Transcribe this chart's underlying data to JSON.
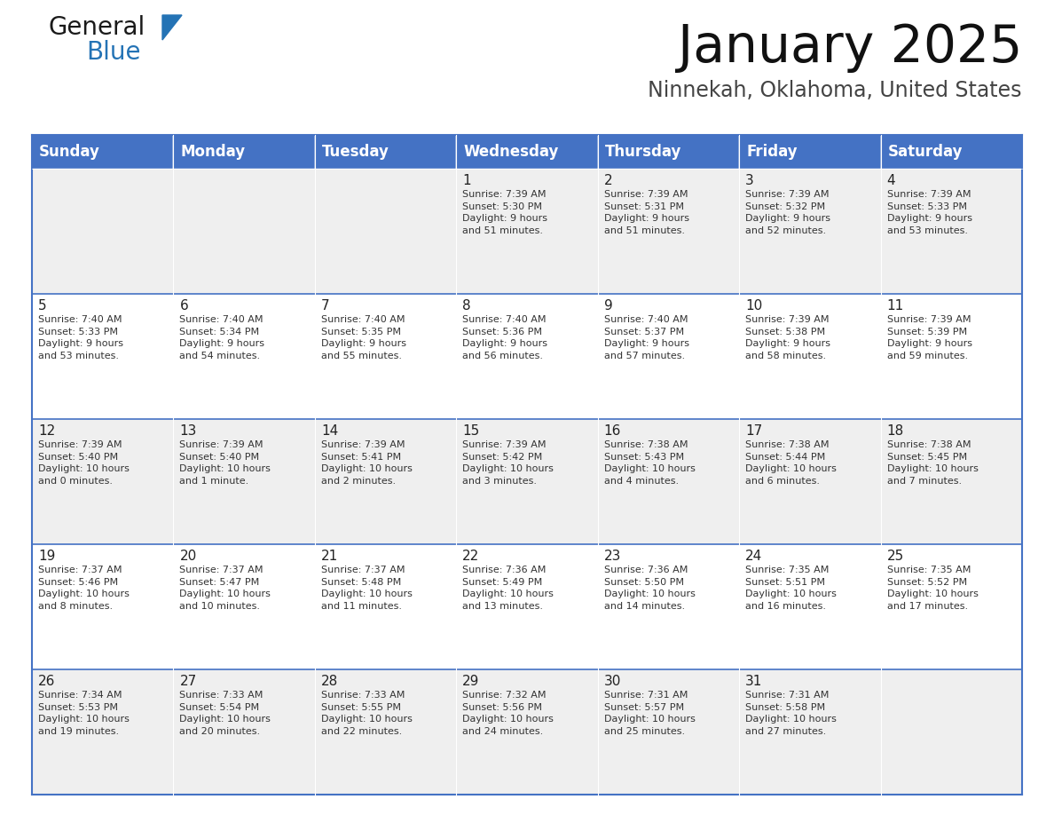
{
  "title": "January 2025",
  "subtitle": "Ninnekah, Oklahoma, United States",
  "header_bg": "#4472C4",
  "header_text_color": "#FFFFFF",
  "cell_bg_odd": "#EFEFEF",
  "cell_bg_even": "#FFFFFF",
  "border_color": "#4472C4",
  "row_divider_color": "#4472C4",
  "text_color": "#333333",
  "day_num_color": "#222222",
  "days_of_week": [
    "Sunday",
    "Monday",
    "Tuesday",
    "Wednesday",
    "Thursday",
    "Friday",
    "Saturday"
  ],
  "weeks": [
    [
      {
        "day": "",
        "info": ""
      },
      {
        "day": "",
        "info": ""
      },
      {
        "day": "",
        "info": ""
      },
      {
        "day": "1",
        "info": "Sunrise: 7:39 AM\nSunset: 5:30 PM\nDaylight: 9 hours\nand 51 minutes."
      },
      {
        "day": "2",
        "info": "Sunrise: 7:39 AM\nSunset: 5:31 PM\nDaylight: 9 hours\nand 51 minutes."
      },
      {
        "day": "3",
        "info": "Sunrise: 7:39 AM\nSunset: 5:32 PM\nDaylight: 9 hours\nand 52 minutes."
      },
      {
        "day": "4",
        "info": "Sunrise: 7:39 AM\nSunset: 5:33 PM\nDaylight: 9 hours\nand 53 minutes."
      }
    ],
    [
      {
        "day": "5",
        "info": "Sunrise: 7:40 AM\nSunset: 5:33 PM\nDaylight: 9 hours\nand 53 minutes."
      },
      {
        "day": "6",
        "info": "Sunrise: 7:40 AM\nSunset: 5:34 PM\nDaylight: 9 hours\nand 54 minutes."
      },
      {
        "day": "7",
        "info": "Sunrise: 7:40 AM\nSunset: 5:35 PM\nDaylight: 9 hours\nand 55 minutes."
      },
      {
        "day": "8",
        "info": "Sunrise: 7:40 AM\nSunset: 5:36 PM\nDaylight: 9 hours\nand 56 minutes."
      },
      {
        "day": "9",
        "info": "Sunrise: 7:40 AM\nSunset: 5:37 PM\nDaylight: 9 hours\nand 57 minutes."
      },
      {
        "day": "10",
        "info": "Sunrise: 7:39 AM\nSunset: 5:38 PM\nDaylight: 9 hours\nand 58 minutes."
      },
      {
        "day": "11",
        "info": "Sunrise: 7:39 AM\nSunset: 5:39 PM\nDaylight: 9 hours\nand 59 minutes."
      }
    ],
    [
      {
        "day": "12",
        "info": "Sunrise: 7:39 AM\nSunset: 5:40 PM\nDaylight: 10 hours\nand 0 minutes."
      },
      {
        "day": "13",
        "info": "Sunrise: 7:39 AM\nSunset: 5:40 PM\nDaylight: 10 hours\nand 1 minute."
      },
      {
        "day": "14",
        "info": "Sunrise: 7:39 AM\nSunset: 5:41 PM\nDaylight: 10 hours\nand 2 minutes."
      },
      {
        "day": "15",
        "info": "Sunrise: 7:39 AM\nSunset: 5:42 PM\nDaylight: 10 hours\nand 3 minutes."
      },
      {
        "day": "16",
        "info": "Sunrise: 7:38 AM\nSunset: 5:43 PM\nDaylight: 10 hours\nand 4 minutes."
      },
      {
        "day": "17",
        "info": "Sunrise: 7:38 AM\nSunset: 5:44 PM\nDaylight: 10 hours\nand 6 minutes."
      },
      {
        "day": "18",
        "info": "Sunrise: 7:38 AM\nSunset: 5:45 PM\nDaylight: 10 hours\nand 7 minutes."
      }
    ],
    [
      {
        "day": "19",
        "info": "Sunrise: 7:37 AM\nSunset: 5:46 PM\nDaylight: 10 hours\nand 8 minutes."
      },
      {
        "day": "20",
        "info": "Sunrise: 7:37 AM\nSunset: 5:47 PM\nDaylight: 10 hours\nand 10 minutes."
      },
      {
        "day": "21",
        "info": "Sunrise: 7:37 AM\nSunset: 5:48 PM\nDaylight: 10 hours\nand 11 minutes."
      },
      {
        "day": "22",
        "info": "Sunrise: 7:36 AM\nSunset: 5:49 PM\nDaylight: 10 hours\nand 13 minutes."
      },
      {
        "day": "23",
        "info": "Sunrise: 7:36 AM\nSunset: 5:50 PM\nDaylight: 10 hours\nand 14 minutes."
      },
      {
        "day": "24",
        "info": "Sunrise: 7:35 AM\nSunset: 5:51 PM\nDaylight: 10 hours\nand 16 minutes."
      },
      {
        "day": "25",
        "info": "Sunrise: 7:35 AM\nSunset: 5:52 PM\nDaylight: 10 hours\nand 17 minutes."
      }
    ],
    [
      {
        "day": "26",
        "info": "Sunrise: 7:34 AM\nSunset: 5:53 PM\nDaylight: 10 hours\nand 19 minutes."
      },
      {
        "day": "27",
        "info": "Sunrise: 7:33 AM\nSunset: 5:54 PM\nDaylight: 10 hours\nand 20 minutes."
      },
      {
        "day": "28",
        "info": "Sunrise: 7:33 AM\nSunset: 5:55 PM\nDaylight: 10 hours\nand 22 minutes."
      },
      {
        "day": "29",
        "info": "Sunrise: 7:32 AM\nSunset: 5:56 PM\nDaylight: 10 hours\nand 24 minutes."
      },
      {
        "day": "30",
        "info": "Sunrise: 7:31 AM\nSunset: 5:57 PM\nDaylight: 10 hours\nand 25 minutes."
      },
      {
        "day": "31",
        "info": "Sunrise: 7:31 AM\nSunset: 5:58 PM\nDaylight: 10 hours\nand 27 minutes."
      },
      {
        "day": "",
        "info": ""
      }
    ]
  ],
  "logo_text1": "General",
  "logo_text2": "Blue",
  "logo_color1": "#1a1a1a",
  "logo_color2": "#2473b5",
  "logo_triangle_color": "#2473b5",
  "fig_width": 11.88,
  "fig_height": 9.18
}
